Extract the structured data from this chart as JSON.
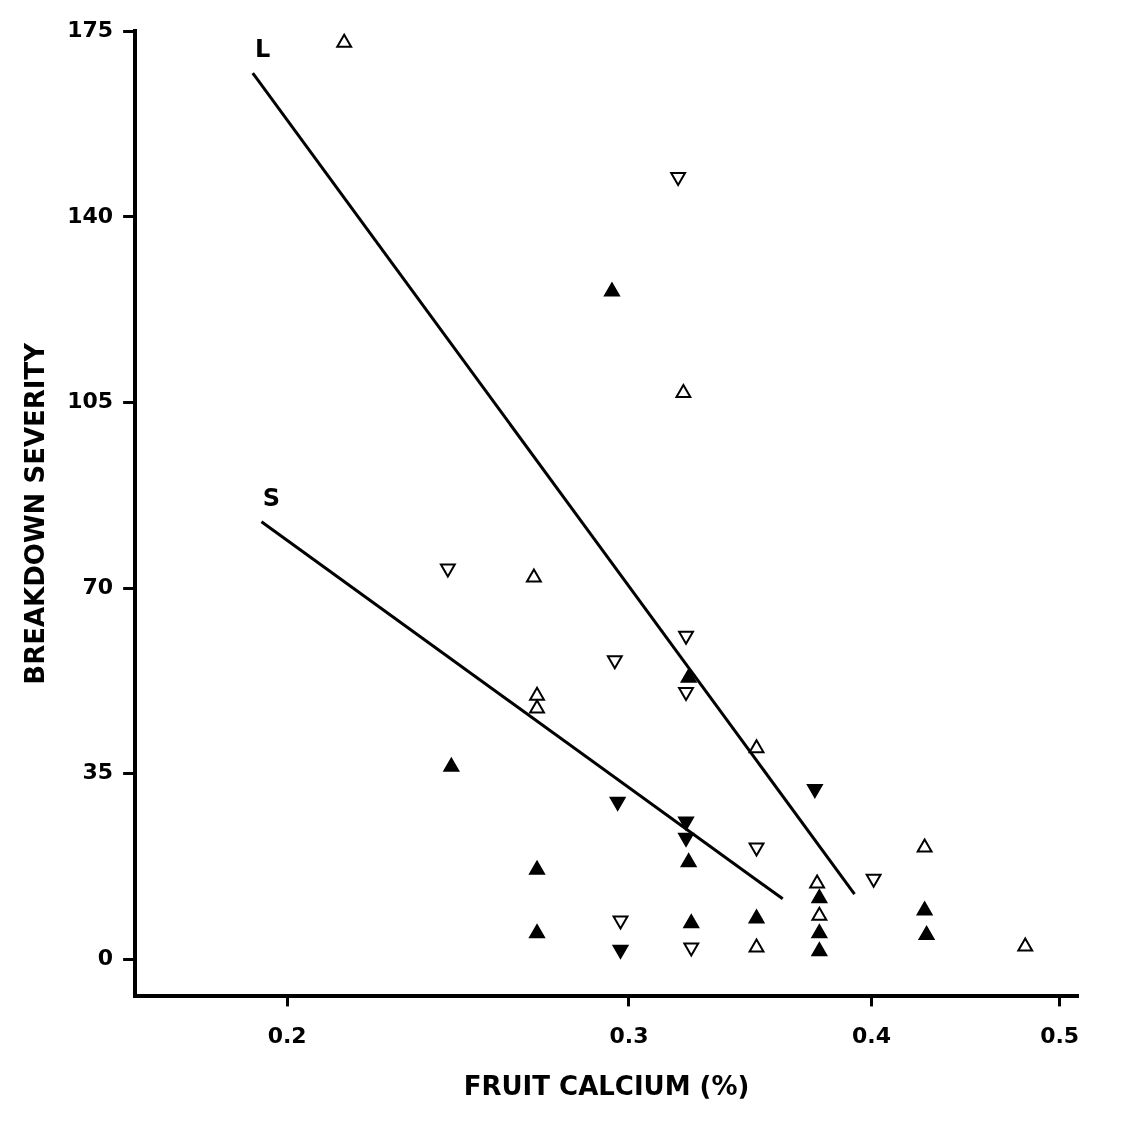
{
  "chart_data": {
    "type": "scatter",
    "xlabel": "FRUIT CALCIUM (%)",
    "ylabel": "BREAKDOWN SEVERITY",
    "log": "x",
    "xlim": [
      0.167,
      0.511
    ],
    "ylim": [
      -7,
      175
    ],
    "xticks": [
      0.2,
      0.3,
      0.4,
      0.5
    ],
    "yticks": [
      0,
      35,
      70,
      105,
      140,
      175
    ],
    "grid": false,
    "legend": false,
    "series": [
      {
        "marker": "triangle-open",
        "color": "#000000",
        "x": [
          0.214,
          0.32,
          0.268,
          0.269,
          0.269,
          0.349,
          0.375,
          0.376,
          0.426,
          0.349,
          0.48
        ],
        "values": [
          172.8,
          106.8,
          72,
          49.7,
          47.3,
          39.8,
          14.3,
          8.2,
          21.1,
          2.2,
          2.4
        ]
      },
      {
        "marker": "triangle-down-open",
        "color": "#000000",
        "x": [
          0.318,
          0.242,
          0.295,
          0.321,
          0.321,
          0.349,
          0.401,
          0.297,
          0.323
        ],
        "values": [
          147.5,
          73.7,
          56.4,
          61,
          50.4,
          21.1,
          15.2,
          7.3,
          2.2
        ]
      },
      {
        "marker": "triangle",
        "color": "#000000",
        "x": [
          0.294,
          0.243,
          0.269,
          0.322,
          0.322,
          0.323,
          0.349,
          0.376,
          0.376,
          0.376,
          0.426,
          0.427,
          0.269
        ],
        "values": [
          125.9,
          36.3,
          16.9,
          53.1,
          18.3,
          6.8,
          7.7,
          11.5,
          4.9,
          1.5,
          9.2,
          4.6,
          4.9
        ]
      },
      {
        "marker": "triangle-down",
        "color": "#000000",
        "x": [
          0.296,
          0.321,
          0.321,
          0.374,
          0.297
        ],
        "values": [
          29.7,
          26,
          22.9,
          32.1,
          1.8
        ]
      },
      {
        "type": "line",
        "name": "L",
        "color": "#000000",
        "x": [
          0.192,
          0.392
        ],
        "values": [
          167.1,
          12.3
        ]
      },
      {
        "type": "line",
        "name": "S",
        "color": "#000000",
        "x": [
          0.194,
          0.36
        ],
        "values": [
          82.5,
          11.4
        ]
      }
    ]
  }
}
